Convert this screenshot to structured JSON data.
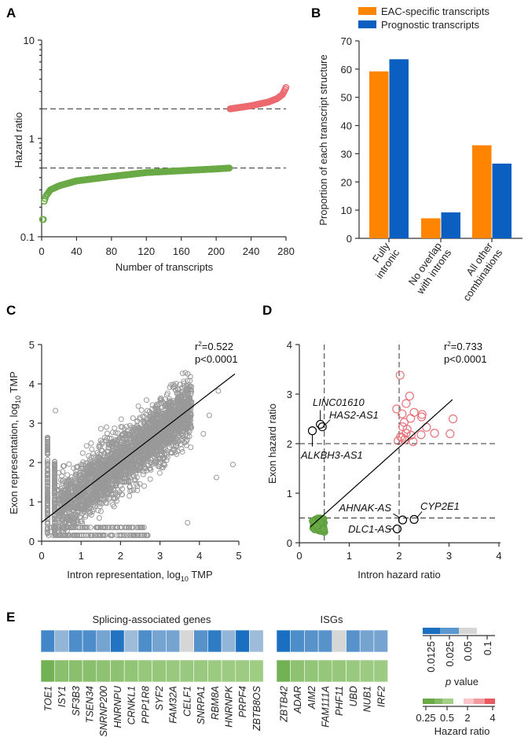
{
  "chart_data": [
    {
      "panel": "A",
      "type": "scatter",
      "xlabel": "Number of transcripts",
      "ylabel": "Hazard ratio",
      "xlim": [
        0,
        280
      ],
      "ylim": [
        0.1,
        10
      ],
      "yscale": "log",
      "xticks": [
        "0",
        "40",
        "80",
        "120",
        "160",
        "200",
        "240",
        "280"
      ],
      "yticks": [
        "0.1",
        "1",
        "10"
      ],
      "reference_lines": [
        0.5,
        2
      ],
      "series": [
        {
          "color": "#6aaa46",
          "points": [
            [
              1,
              0.15
            ],
            [
              2,
              0.15
            ],
            [
              3,
              0.23
            ],
            [
              5,
              0.26
            ],
            [
              10,
              0.3
            ],
            [
              20,
              0.33
            ],
            [
              40,
              0.37
            ],
            [
              80,
              0.41
            ],
            [
              120,
              0.45
            ],
            [
              160,
              0.47
            ],
            [
              200,
              0.49
            ],
            [
              215,
              0.5
            ]
          ]
        },
        {
          "color": "#ec6a6f",
          "points": [
            [
              216,
              2.0
            ],
            [
              240,
              2.15
            ],
            [
              260,
              2.35
            ],
            [
              270,
              2.55
            ],
            [
              276,
              2.8
            ],
            [
              280,
              3.3
            ]
          ]
        }
      ]
    },
    {
      "panel": "B",
      "type": "bar",
      "ylabel": "Proportion of each transcript structure",
      "ylim": [
        0,
        70
      ],
      "yticks": [
        "0",
        "10",
        "20",
        "30",
        "40",
        "50",
        "60",
        "70"
      ],
      "categories": [
        [
          "Fully",
          "intronic"
        ],
        [
          "No overlap",
          "with introns"
        ],
        [
          "All other",
          "combinations"
        ]
      ],
      "legend_position": "top",
      "series": [
        {
          "name": "EAC-specific transcripts",
          "color": "#ff8400",
          "values": [
            59.2,
            7.1,
            33.0
          ]
        },
        {
          "name": "Prognostic transcripts",
          "color": "#0b5fc0",
          "values": [
            63.5,
            9.2,
            26.5
          ]
        }
      ]
    },
    {
      "panel": "C",
      "type": "scatter",
      "xlabel": "Intron representation, log",
      "xlabel_sub": "10",
      "xlabel_unit": " TMP",
      "ylabel": "Exon representation, log",
      "ylabel_sub": "10",
      "ylabel_unit": " TMP",
      "xlim": [
        0,
        5
      ],
      "ylim": [
        0,
        5
      ],
      "xticks": [
        "0",
        "1",
        "2",
        "3",
        "4",
        "5"
      ],
      "yticks": [
        "0",
        "1",
        "2",
        "3",
        "4",
        "5"
      ],
      "point_color": "#999999",
      "regression": {
        "intercept": 0.48,
        "slope": 0.77,
        "x_end": 4.9
      },
      "r2_label": "r",
      "r2_value": "=0.522",
      "p_label": "p<0.0001"
    },
    {
      "panel": "D",
      "type": "scatter",
      "xlabel": "Intron hazard ratio",
      "ylabel": "Exon hazard ratio",
      "xlim": [
        0,
        4
      ],
      "ylim": [
        0,
        4
      ],
      "xticks": [
        "0",
        "1",
        "2",
        "3",
        "4"
      ],
      "yticks": [
        "0",
        "1",
        "2",
        "3",
        "4"
      ],
      "reference_lines_x": [
        0.5,
        2
      ],
      "reference_lines_y": [
        0.5,
        2
      ],
      "regression": {
        "x": [
          0.22,
          3.07
        ],
        "y": [
          0.32,
          2.89
        ]
      },
      "r2_label": "r",
      "r2_value": "=0.733",
      "p_label": "p<0.0001",
      "red_color": "#e8747a",
      "green_color": "#6aaa46",
      "red_points": [
        [
          2.02,
          3.38
        ],
        [
          2.21,
          2.96
        ],
        [
          2.14,
          2.81
        ],
        [
          1.95,
          2.7
        ],
        [
          2.06,
          2.6
        ],
        [
          2.3,
          2.63
        ],
        [
          2.46,
          2.59
        ],
        [
          2.45,
          2.54
        ],
        [
          2.23,
          2.51
        ],
        [
          2.1,
          2.43
        ],
        [
          2.07,
          2.34
        ],
        [
          2.16,
          2.29
        ],
        [
          2.55,
          2.33
        ],
        [
          3.08,
          2.5
        ],
        [
          2.71,
          2.21
        ],
        [
          3.02,
          2.2
        ],
        [
          2.44,
          2.18
        ],
        [
          2.24,
          2.17
        ],
        [
          2.14,
          2.21
        ],
        [
          1.98,
          2.06
        ],
        [
          2.06,
          2.12
        ],
        [
          2.28,
          2.04
        ],
        [
          2.11,
          2.08
        ],
        [
          2.03,
          2.14
        ]
      ],
      "green_points": [
        [
          0.28,
          0.3
        ],
        [
          0.3,
          0.42
        ],
        [
          0.32,
          0.36
        ],
        [
          0.33,
          0.47
        ],
        [
          0.35,
          0.28
        ],
        [
          0.36,
          0.4
        ],
        [
          0.37,
          0.33
        ],
        [
          0.38,
          0.45
        ],
        [
          0.39,
          0.25
        ],
        [
          0.4,
          0.38
        ],
        [
          0.41,
          0.3
        ],
        [
          0.42,
          0.49
        ],
        [
          0.43,
          0.35
        ],
        [
          0.44,
          0.42
        ],
        [
          0.45,
          0.27
        ],
        [
          0.46,
          0.38
        ],
        [
          0.47,
          0.46
        ],
        [
          0.48,
          0.32
        ],
        [
          0.49,
          0.4
        ],
        [
          0.5,
          0.22
        ],
        [
          0.29,
          0.36
        ],
        [
          0.31,
          0.27
        ],
        [
          0.34,
          0.44
        ],
        [
          0.37,
          0.49
        ],
        [
          0.4,
          0.46
        ],
        [
          0.43,
          0.24
        ],
        [
          0.46,
          0.31
        ],
        [
          0.48,
          0.48
        ],
        [
          0.33,
          0.39
        ],
        [
          0.41,
          0.35
        ],
        [
          0.45,
          0.45
        ],
        [
          0.38,
          0.29
        ],
        [
          0.27,
          0.44
        ],
        [
          0.49,
          0.27
        ],
        [
          0.42,
          0.41
        ],
        [
          0.35,
          0.34
        ]
      ],
      "labeled_points": [
        {
          "label": "LINC01610",
          "x": 0.42,
          "y": 2.39
        },
        {
          "label": "HAS2-AS1",
          "x": 0.46,
          "y": 2.34
        },
        {
          "label": "ALKBH3-AS1",
          "x": 0.26,
          "y": 2.26
        },
        {
          "label": "AHNAK-AS",
          "x": 2.07,
          "y": 0.46
        },
        {
          "label": "CYP2E1",
          "x": 2.3,
          "y": 0.47
        },
        {
          "label": "DLC1-AS",
          "x": 1.96,
          "y": 0.28
        }
      ]
    },
    {
      "panel": "E",
      "type": "heatmap",
      "groups": [
        {
          "title": "Splicing-associated genes",
          "genes": [
            {
              "gene": "TOE1",
              "p": 0.018,
              "hr": 0.3
            },
            {
              "gene": "ISY1",
              "p": 0.04,
              "hr": 0.38
            },
            {
              "gene": "SF3B3",
              "p": 0.02,
              "hr": 0.38
            },
            {
              "gene": "TSEN34",
              "p": 0.02,
              "hr": 0.38
            },
            {
              "gene": "SNRNP200",
              "p": 0.03,
              "hr": 0.4
            },
            {
              "gene": "HNRNPU",
              "p": 0.013,
              "hr": 0.4
            },
            {
              "gene": "CRNKL1",
              "p": 0.045,
              "hr": 0.42
            },
            {
              "gene": "PPP1R8",
              "p": 0.02,
              "hr": 0.44
            },
            {
              "gene": "SYF2",
              "p": 0.03,
              "hr": 0.44
            },
            {
              "gene": "FAM32A",
              "p": 0.03,
              "hr": 0.45
            },
            {
              "gene": "CELF1",
              "p": 0.06,
              "hr": 0.45
            },
            {
              "gene": "SNRPA1",
              "p": 0.022,
              "hr": 0.45
            },
            {
              "gene": "RBM8A",
              "p": 0.015,
              "hr": 0.46
            },
            {
              "gene": "HNRNPK",
              "p": 0.04,
              "hr": 0.47
            },
            {
              "gene": "PRPF4",
              "p": 0.012,
              "hr": 0.47
            },
            {
              "gene": "ZBTB8OS",
              "p": 0.045,
              "hr": 0.48
            }
          ]
        },
        {
          "title": "ISGs",
          "genes": [
            {
              "gene": "ZBTB42",
              "p": 0.012,
              "hr": 0.3
            },
            {
              "gene": "ADAR",
              "p": 0.02,
              "hr": 0.4
            },
            {
              "gene": "AIM2",
              "p": 0.022,
              "hr": 0.42
            },
            {
              "gene": "FAM111A",
              "p": 0.022,
              "hr": 0.43
            },
            {
              "gene": "PHF11",
              "p": 0.06,
              "hr": 0.44
            },
            {
              "gene": "UBD",
              "p": 0.022,
              "hr": 0.45
            },
            {
              "gene": "NUB1",
              "p": 0.03,
              "hr": 0.46
            },
            {
              "gene": "IRF2",
              "p": 0.03,
              "hr": 0.47
            }
          ]
        }
      ],
      "p_legend": {
        "title_italic": "p",
        "title_rest": " value",
        "ticks": [
          "0.0125",
          "0.025",
          "0.05",
          "0.1"
        ],
        "colors": [
          "#1a6fc0",
          "#5b98cf",
          "#d6d6d6"
        ]
      },
      "hr_legend": {
        "title": "Hazard ratio",
        "ticks": [
          "0.25",
          "0.5",
          "2",
          "4"
        ],
        "colors": [
          "#6aaa46",
          "#85bb66",
          "#a3cf88",
          "#f9c6ca",
          "#f39ba0",
          "#ea5a62"
        ]
      }
    }
  ],
  "panel_letters": [
    "A",
    "B",
    "C",
    "D",
    "E"
  ]
}
